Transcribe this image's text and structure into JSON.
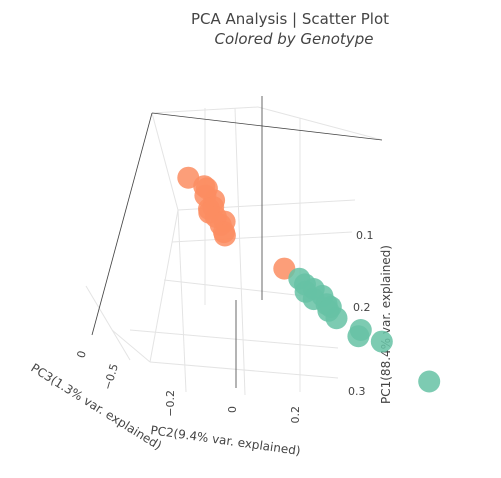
{
  "chart_data": {
    "type": "scatter3d",
    "title": "PCA Analysis | Scatter Plot",
    "subtitle": "Colored by Genotype",
    "axes": {
      "x": {
        "label": "PC2(9.4% var. explained)",
        "ticks": [
          "−0.2",
          "0",
          "0.2"
        ]
      },
      "y": {
        "label": "PC3(1.3% var. explained)",
        "ticks": [
          "0",
          "−0.5"
        ]
      },
      "z": {
        "label": "PC1(88.4% var. explained)",
        "ticks": [
          "0.1",
          "0.2",
          "0.3"
        ]
      }
    },
    "series": [
      {
        "color": "#fc8d62",
        "points": [
          {
            "pc2": -0.22,
            "pc3": -0.05,
            "pc1": -0.3
          },
          {
            "pc2": -0.18,
            "pc3": -0.08,
            "pc1": -0.28
          },
          {
            "pc2": -0.16,
            "pc3": -0.06,
            "pc1": -0.27
          },
          {
            "pc2": -0.21,
            "pc3": -0.1,
            "pc1": -0.25
          },
          {
            "pc2": -0.19,
            "pc3": -0.12,
            "pc1": -0.24
          },
          {
            "pc2": -0.23,
            "pc3": -0.15,
            "pc1": -0.22
          },
          {
            "pc2": -0.25,
            "pc3": -0.14,
            "pc1": -0.21
          },
          {
            "pc2": -0.27,
            "pc3": -0.16,
            "pc1": -0.2
          },
          {
            "pc2": -0.26,
            "pc3": -0.18,
            "pc1": -0.19
          },
          {
            "pc2": -0.24,
            "pc3": -0.2,
            "pc1": -0.18
          },
          {
            "pc2": -0.28,
            "pc3": -0.22,
            "pc1": -0.17
          },
          {
            "pc2": -0.3,
            "pc3": -0.25,
            "pc1": -0.15
          },
          {
            "pc2": -0.31,
            "pc3": -0.26,
            "pc1": -0.14
          },
          {
            "pc2": -0.12,
            "pc3": -0.3,
            "pc1": -0.05
          }
        ]
      },
      {
        "color": "#66c2a5",
        "points": [
          {
            "pc2": 0.08,
            "pc3": -0.05,
            "pc1": 0.02
          },
          {
            "pc2": 0.1,
            "pc3": -0.04,
            "pc1": 0.04
          },
          {
            "pc2": 0.12,
            "pc3": -0.06,
            "pc1": 0.05
          },
          {
            "pc2": 0.06,
            "pc3": -0.08,
            "pc1": 0.06
          },
          {
            "pc2": 0.14,
            "pc3": -0.07,
            "pc1": 0.07
          },
          {
            "pc2": 0.07,
            "pc3": -0.1,
            "pc1": 0.08
          },
          {
            "pc2": 0.11,
            "pc3": -0.12,
            "pc1": 0.09
          },
          {
            "pc2": 0.13,
            "pc3": -0.11,
            "pc1": 0.1
          },
          {
            "pc2": 0.09,
            "pc3": -0.14,
            "pc1": 0.11
          },
          {
            "pc2": 0.1,
            "pc3": -0.16,
            "pc1": 0.13
          },
          {
            "pc2": 0.18,
            "pc3": -0.18,
            "pc1": 0.16
          },
          {
            "pc2": 0.14,
            "pc3": -0.2,
            "pc1": 0.18
          },
          {
            "pc2": 0.28,
            "pc3": -0.14,
            "pc1": 0.2
          },
          {
            "pc2": 0.32,
            "pc3": -0.3,
            "pc1": 0.3
          }
        ]
      }
    ]
  }
}
